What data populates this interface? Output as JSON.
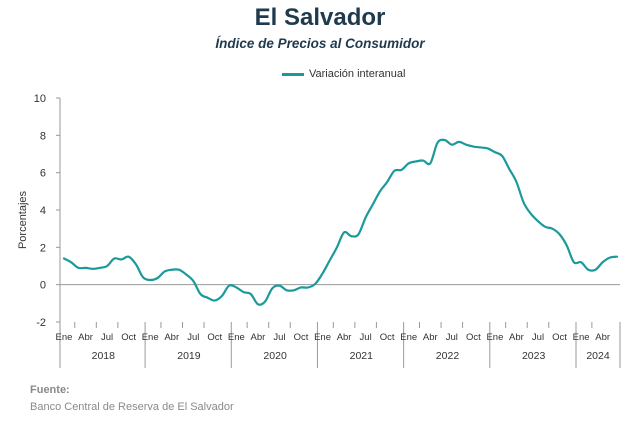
{
  "header": {
    "title": "El Salvador",
    "subtitle": "Índice de Precios al Consumidor"
  },
  "source": {
    "heading": "Fuente:",
    "text": "Banco Central de Reserva de El Salvador"
  },
  "colors": {
    "line": "#1a9a9a",
    "axis": "#9a9a9a"
  },
  "chart_data": {
    "type": "line",
    "ylabel": "Porcentajes",
    "ylim": [
      -2,
      10
    ],
    "yticks": [
      -2,
      0,
      2,
      4,
      6,
      8,
      10
    ],
    "grid": false,
    "legend": "top-center",
    "month_labels": [
      "Ene",
      "Abr",
      "Jul",
      "Oct"
    ],
    "years": [
      "2018",
      "2019",
      "2020",
      "2021",
      "2022",
      "2023",
      "2024"
    ],
    "series": [
      {
        "name": "Variación interanual",
        "values": [
          1.4,
          1.2,
          0.9,
          0.9,
          0.85,
          0.9,
          1.0,
          1.4,
          1.35,
          1.5,
          1.1,
          0.4,
          0.25,
          0.35,
          0.7,
          0.8,
          0.8,
          0.55,
          0.2,
          -0.5,
          -0.7,
          -0.85,
          -0.6,
          -0.05,
          -0.15,
          -0.4,
          -0.5,
          -1.05,
          -0.9,
          -0.2,
          -0.05,
          -0.3,
          -0.3,
          -0.15,
          -0.15,
          0.05,
          0.6,
          1.3,
          2.0,
          2.8,
          2.6,
          2.7,
          3.6,
          4.3,
          5.0,
          5.5,
          6.1,
          6.15,
          6.5,
          6.6,
          6.65,
          6.5,
          7.6,
          7.75,
          7.5,
          7.65,
          7.5,
          7.4,
          7.35,
          7.3,
          7.1,
          6.9,
          6.2,
          5.5,
          4.4,
          3.8,
          3.4,
          3.1,
          3.0,
          2.7,
          2.1,
          1.2,
          1.2,
          0.8,
          0.8,
          1.2,
          1.45,
          1.5
        ]
      }
    ]
  }
}
